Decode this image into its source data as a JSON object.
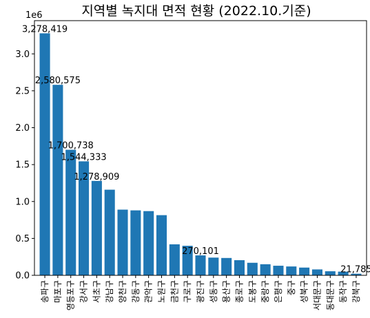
{
  "chart_data": {
    "type": "bar",
    "title": "지역별 녹지대 면적 현황 (2022.10.기준)",
    "xlabel": "",
    "ylabel": "",
    "y_offset_label": "1e6",
    "ylim": [
      0,
      3450000
    ],
    "yticks": [
      0,
      500000,
      1000000,
      1500000,
      2000000,
      2500000,
      3000000
    ],
    "ytick_labels": [
      "0.0",
      "0.5",
      "1.0",
      "1.5",
      "2.0",
      "2.5",
      "3.0"
    ],
    "grid": false,
    "categories": [
      "송파구",
      "마포구",
      "영등포구",
      "강서구",
      "서초구",
      "강남구",
      "양천구",
      "강동구",
      "관악구",
      "노원구",
      "금천구",
      "구로구",
      "광진구",
      "성동구",
      "용산구",
      "종로구",
      "도봉구",
      "중랑구",
      "은평구",
      "중구",
      "성북구",
      "서대문구",
      "동대문구",
      "동작구",
      "강북구"
    ],
    "values": [
      3278419,
      2580575,
      1700738,
      1544333,
      1278909,
      1160000,
      890000,
      880000,
      870000,
      815000,
      420000,
      400000,
      270101,
      240000,
      235000,
      205000,
      170000,
      150000,
      130000,
      120000,
      105000,
      80000,
      55000,
      50000,
      21785
    ],
    "data_labels": [
      {
        "index": 0,
        "text": "3,278,419"
      },
      {
        "index": 1,
        "text": "2,580,575"
      },
      {
        "index": 2,
        "text": "1,700,738"
      },
      {
        "index": 3,
        "text": "1,544,333"
      },
      {
        "index": 4,
        "text": "1,278,909"
      },
      {
        "index": 12,
        "text": "270,101"
      },
      {
        "index": 24,
        "text": "21,785"
      }
    ]
  }
}
